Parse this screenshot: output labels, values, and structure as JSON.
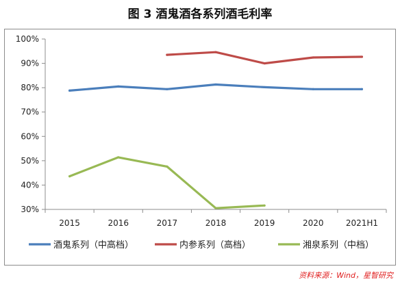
{
  "figure": {
    "title": "图 3  酒鬼酒各系列酒毛利率",
    "source": "资料来源：Wind，星智研究"
  },
  "chart_data": {
    "type": "line",
    "title": "图 3  酒鬼酒各系列酒毛利率",
    "categories": [
      "2015",
      "2016",
      "2017",
      "2018",
      "2019",
      "2020",
      "2021H1"
    ],
    "y_ticks": [
      "100%",
      "90%",
      "80%",
      "70%",
      "60%",
      "50%",
      "40%",
      "30%"
    ],
    "ylim": [
      30,
      100
    ],
    "grid": false,
    "legend_position": "bottom",
    "series": [
      {
        "name": "酒鬼系列（中高档）",
        "color": "#4a7ebb",
        "values": [
          78.8,
          80.5,
          79.4,
          81.3,
          80.2,
          79.4,
          79.4
        ]
      },
      {
        "name": "内参系列（高档）",
        "color": "#be4b48",
        "values": [
          null,
          null,
          93.5,
          94.6,
          90.0,
          92.4,
          92.7
        ]
      },
      {
        "name": "湘泉系列（中档）",
        "color": "#98b954",
        "values": [
          43.6,
          51.4,
          47.6,
          30.5,
          31.6,
          null,
          null
        ]
      }
    ]
  }
}
